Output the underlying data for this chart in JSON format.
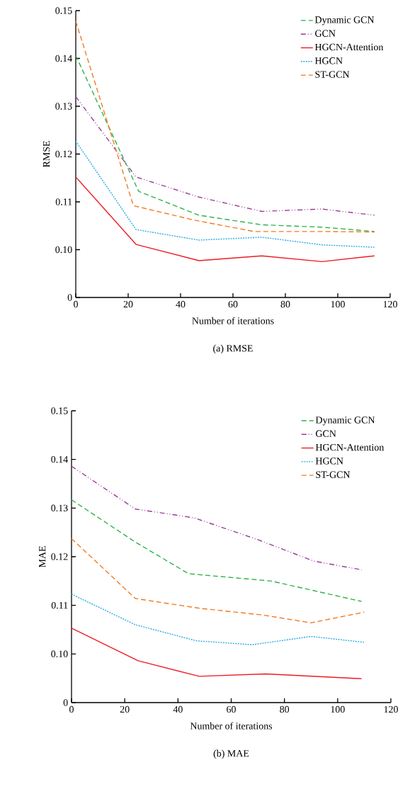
{
  "chart_data": [
    {
      "type": "line",
      "title": "(a) RMSE",
      "xlabel": "Number of iterations",
      "ylabel": "RMSE",
      "legend": "top right",
      "xlim": [
        0,
        120
      ],
      "xticks": [
        0,
        20,
        40,
        60,
        80,
        100,
        120
      ],
      "ylim": [
        0.09,
        0.15
      ],
      "yticks": [
        {
          "value": 0.09,
          "label": "0"
        },
        {
          "value": 0.1,
          "label": "0.10"
        },
        {
          "value": 0.11,
          "label": "0.11"
        },
        {
          "value": 0.12,
          "label": "0.12"
        },
        {
          "value": 0.13,
          "label": "0.13"
        },
        {
          "value": 0.14,
          "label": "0.14"
        },
        {
          "value": 0.15,
          "label": "0.15"
        }
      ],
      "series": [
        {
          "name": "Dynamic GCN",
          "color": "#2db34a",
          "line_style": "dashed",
          "x": [
            0,
            24,
            47,
            71,
            94,
            114
          ],
          "values": [
            0.1406,
            0.1122,
            0.1072,
            0.1052,
            0.1047,
            0.1038
          ]
        },
        {
          "name": "GCN",
          "color": "#9b3c9b",
          "line_style": "dashdotted",
          "x": [
            0,
            23,
            47,
            71,
            94,
            114
          ],
          "values": [
            0.132,
            0.1152,
            0.111,
            0.108,
            0.1085,
            0.1072
          ]
        },
        {
          "name": "HGCN-Attention",
          "color": "#ed1c24",
          "line_style": "solid",
          "x": [
            0,
            23,
            47,
            71,
            94,
            114
          ],
          "values": [
            0.1152,
            0.1011,
            0.0977,
            0.0987,
            0.0975,
            0.0987
          ]
        },
        {
          "name": "HGCN",
          "color": "#29abe2",
          "line_style": "dotted",
          "x": [
            0,
            23,
            47,
            71,
            94,
            114
          ],
          "values": [
            0.1227,
            0.1042,
            0.102,
            0.1026,
            0.101,
            0.1005
          ]
        },
        {
          "name": "ST-GCN",
          "color": "#f47a20",
          "line_style": "dashed",
          "x": [
            0,
            22,
            45,
            68,
            94,
            114
          ],
          "values": [
            0.1478,
            0.1092,
            0.1062,
            0.1038,
            0.1038,
            0.1037
          ]
        }
      ]
    },
    {
      "type": "line",
      "title": "(b) MAE",
      "xlabel": "Number of iterations",
      "ylabel": "MAE",
      "legend": "top right",
      "xlim": [
        0,
        120
      ],
      "xticks": [
        0,
        20,
        40,
        60,
        80,
        100,
        120
      ],
      "ylim": [
        0.09,
        0.15
      ],
      "yticks": [
        {
          "value": 0.09,
          "label": "0"
        },
        {
          "value": 0.1,
          "label": "0.10"
        },
        {
          "value": 0.11,
          "label": "0.11"
        },
        {
          "value": 0.12,
          "label": "0.12"
        },
        {
          "value": 0.13,
          "label": "0.13"
        },
        {
          "value": 0.14,
          "label": "0.14"
        },
        {
          "value": 0.15,
          "label": "0.15"
        }
      ],
      "series": [
        {
          "name": "Dynamic GCN",
          "color": "#2db34a",
          "line_style": "dashed",
          "x": [
            0,
            24,
            44,
            75,
            109
          ],
          "values": [
            0.1317,
            0.123,
            0.1165,
            0.115,
            0.1108
          ]
        },
        {
          "name": "GCN",
          "color": "#9b3c9b",
          "line_style": "dashdotted",
          "x": [
            0,
            24,
            46,
            70,
            91,
            109
          ],
          "values": [
            0.1386,
            0.1298,
            0.128,
            0.1235,
            0.1191,
            0.1173
          ]
        },
        {
          "name": "HGCN-Attention",
          "color": "#ed1c24",
          "line_style": "solid",
          "x": [
            0,
            25,
            48,
            73,
            109
          ],
          "values": [
            0.1053,
            0.0986,
            0.0954,
            0.0959,
            0.0949
          ]
        },
        {
          "name": "HGCN",
          "color": "#29abe2",
          "line_style": "dotted",
          "x": [
            0,
            24,
            47,
            68,
            90,
            110
          ],
          "values": [
            0.1123,
            0.106,
            0.1027,
            0.1019,
            0.1036,
            0.1024
          ]
        },
        {
          "name": "ST-GCN",
          "color": "#f47a20",
          "line_style": "dashed",
          "x": [
            0,
            24,
            48,
            72,
            90,
            110
          ],
          "values": [
            0.1237,
            0.1114,
            0.1094,
            0.108,
            0.1064,
            0.1086
          ]
        }
      ]
    }
  ]
}
